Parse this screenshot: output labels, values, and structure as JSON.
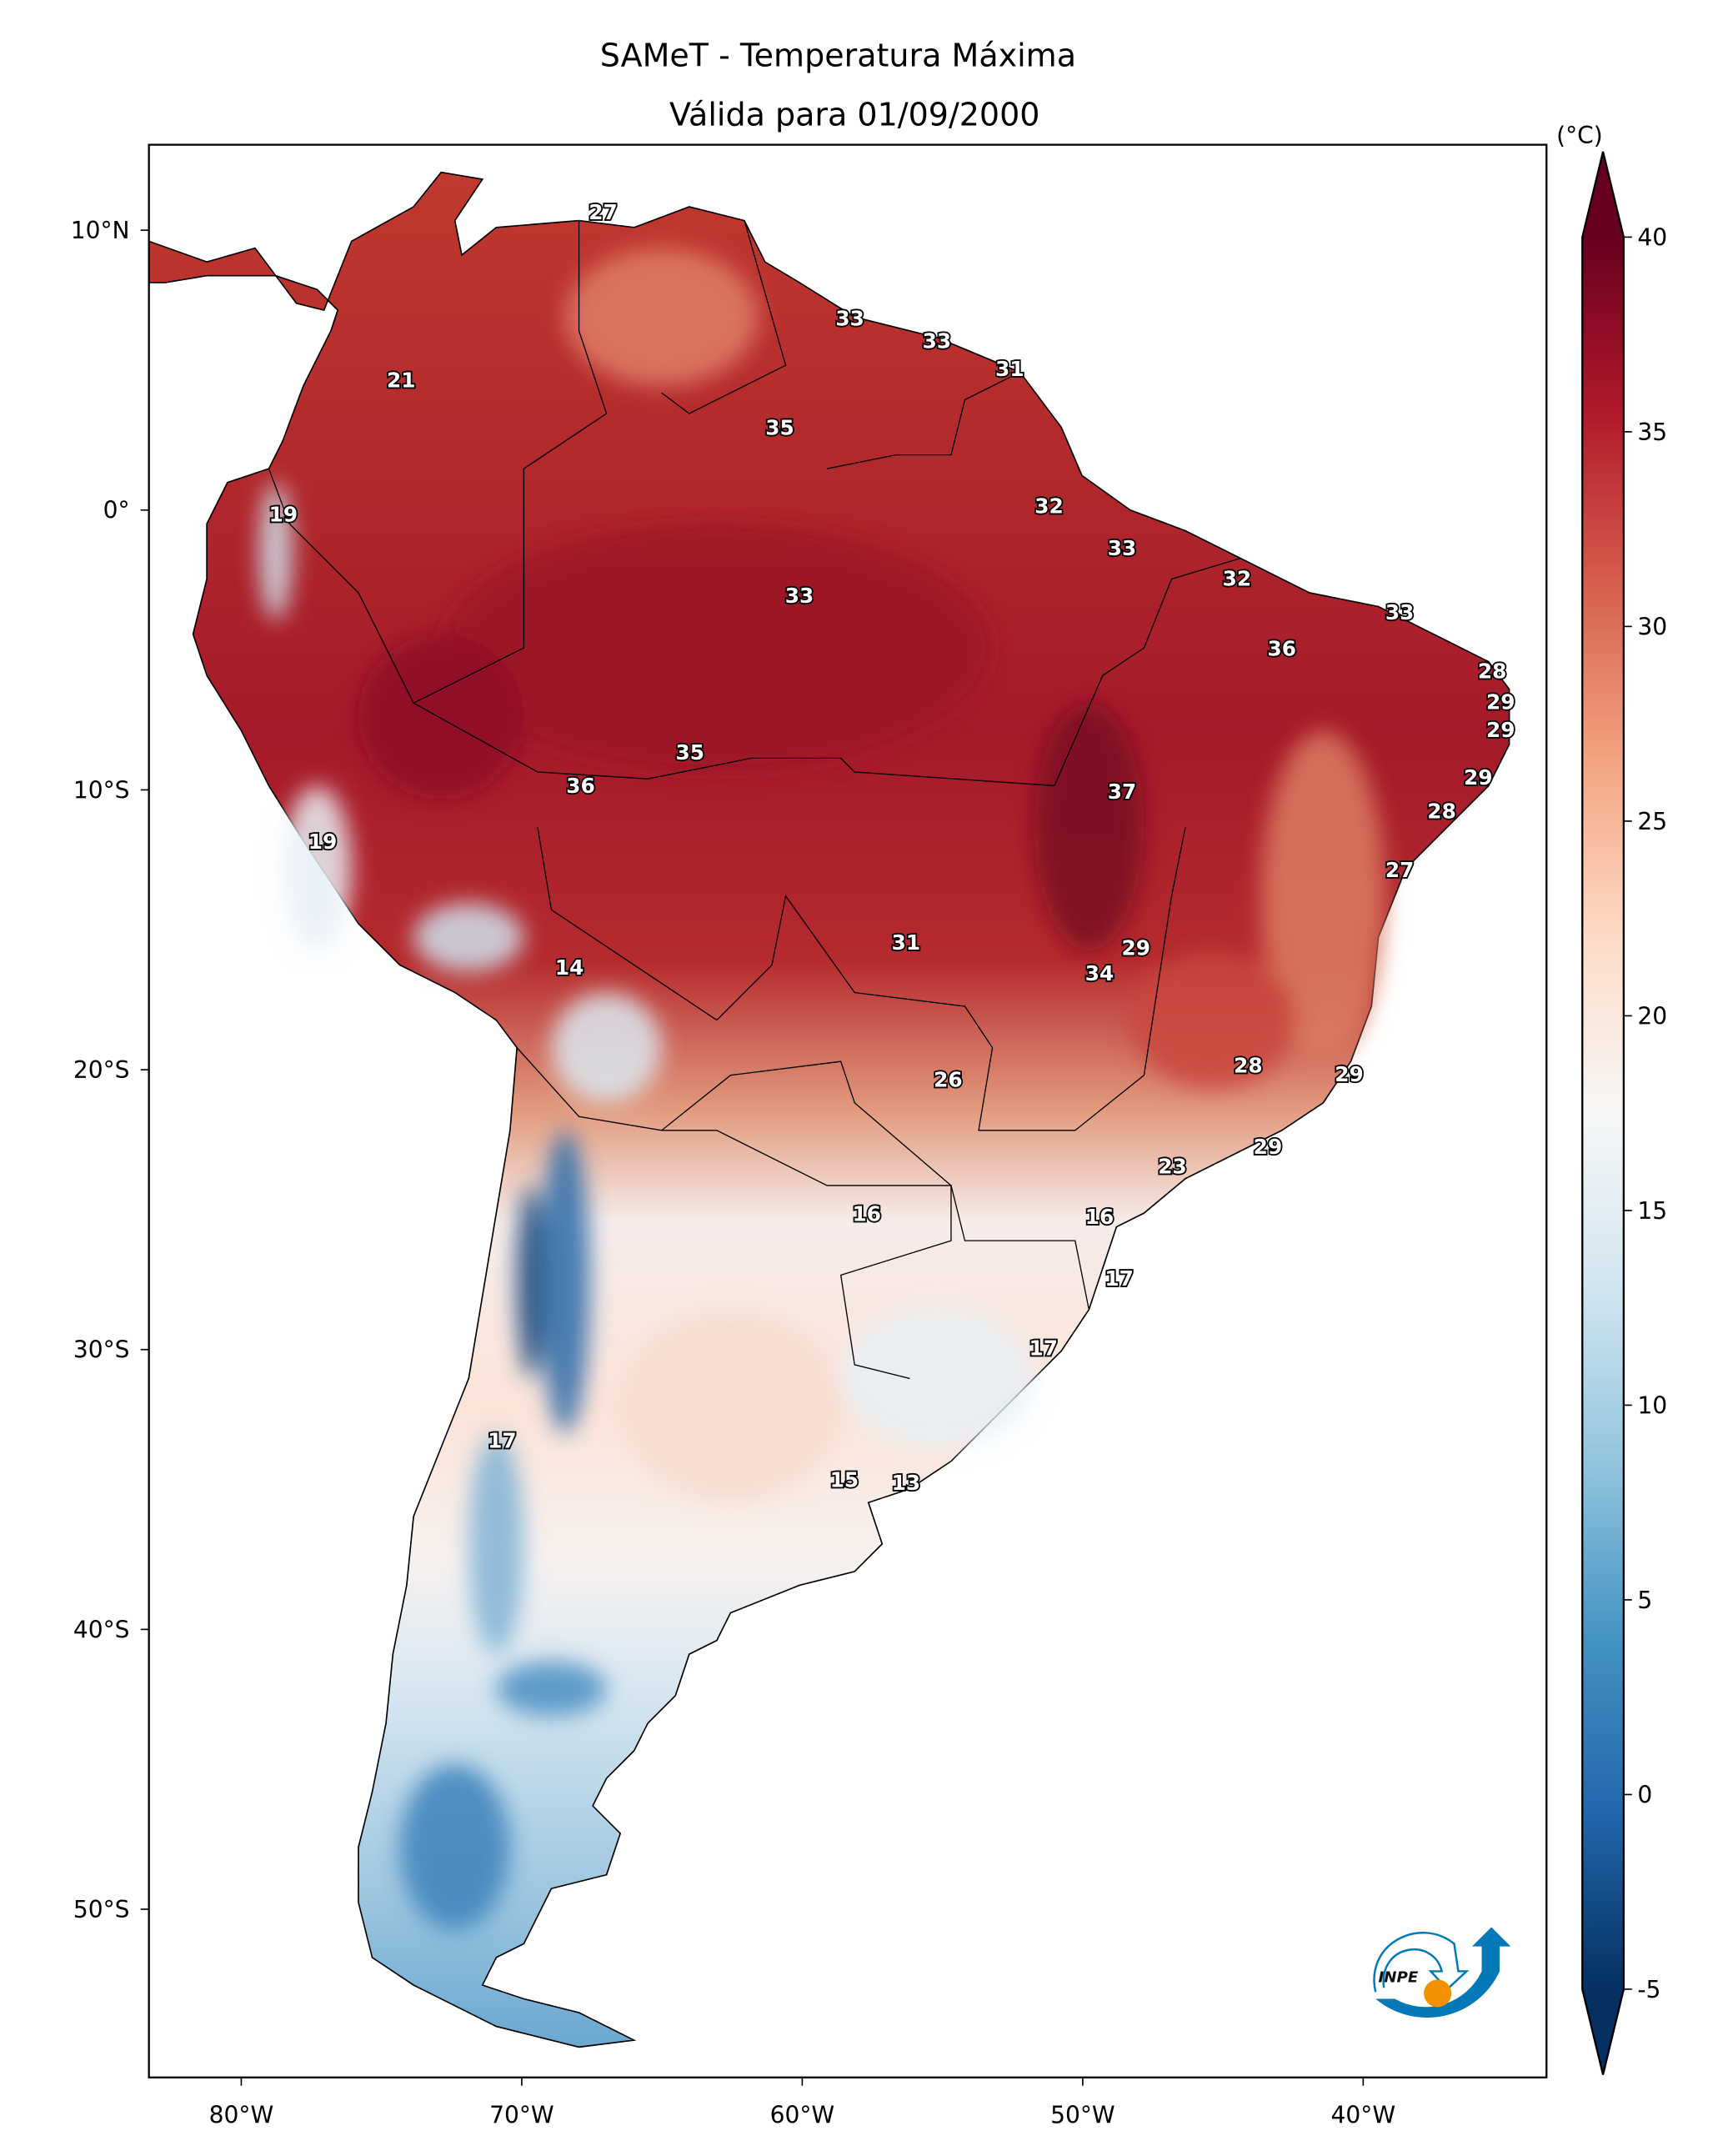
{
  "title": {
    "line1": "SAMeT - Temperatura Máxima",
    "line2": "Válida para 01/09/2000"
  },
  "colorbar": {
    "unit_label": "(°C)",
    "min": -5,
    "max": 40,
    "extend": "both",
    "ticks": [
      -5,
      0,
      5,
      10,
      15,
      20,
      25,
      30,
      35,
      40
    ],
    "colormap": "RdBu_r",
    "stops": [
      "#053061",
      "#2166ac",
      "#4393c3",
      "#92c5de",
      "#d1e5f0",
      "#f7f7f7",
      "#fddbc7",
      "#f4a582",
      "#d6604d",
      "#b2182b",
      "#67001f"
    ]
  },
  "axes": {
    "lon_ticks": [
      {
        "value": -80,
        "label": "80°W"
      },
      {
        "value": -70,
        "label": "70°W"
      },
      {
        "value": -60,
        "label": "60°W"
      },
      {
        "value": -50,
        "label": "50°W"
      },
      {
        "value": -40,
        "label": "40°W"
      }
    ],
    "lat_ticks": [
      {
        "value": 10,
        "label": "10°N"
      },
      {
        "value": 0,
        "label": "0°"
      },
      {
        "value": -10,
        "label": "10°S"
      },
      {
        "value": -20,
        "label": "20°S"
      },
      {
        "value": -30,
        "label": "30°S"
      },
      {
        "value": -40,
        "label": "40°S"
      },
      {
        "value": -50,
        "label": "50°S"
      }
    ],
    "lon_range": [
      -83.3,
      -33.5
    ],
    "lat_range": [
      -56,
      13
    ]
  },
  "contour_labels": [
    {
      "v": "27",
      "lon": -67.1,
      "lat": 10.6
    },
    {
      "v": "33",
      "lon": -58.3,
      "lat": 6.8
    },
    {
      "v": "33",
      "lon": -55.2,
      "lat": 6.0
    },
    {
      "v": "31",
      "lon": -52.6,
      "lat": 5.0
    },
    {
      "v": "21",
      "lon": -74.3,
      "lat": 4.6
    },
    {
      "v": "35",
      "lon": -60.8,
      "lat": 2.9
    },
    {
      "v": "19",
      "lon": -78.5,
      "lat": -0.2
    },
    {
      "v": "32",
      "lon": -51.2,
      "lat": 0.1
    },
    {
      "v": "33",
      "lon": -48.6,
      "lat": -1.4
    },
    {
      "v": "32",
      "lon": -44.5,
      "lat": -2.5
    },
    {
      "v": "33",
      "lon": -60.1,
      "lat": -3.1
    },
    {
      "v": "33",
      "lon": -38.7,
      "lat": -3.7
    },
    {
      "v": "36",
      "lon": -42.9,
      "lat": -5.0
    },
    {
      "v": "28",
      "lon": -35.4,
      "lat": -5.8
    },
    {
      "v": "29",
      "lon": -35.1,
      "lat": -6.9
    },
    {
      "v": "29",
      "lon": -35.1,
      "lat": -7.9
    },
    {
      "v": "35",
      "lon": -64.0,
      "lat": -8.7
    },
    {
      "v": "29",
      "lon": -35.9,
      "lat": -9.6
    },
    {
      "v": "36",
      "lon": -67.9,
      "lat": -9.9
    },
    {
      "v": "37",
      "lon": -48.6,
      "lat": -10.1
    },
    {
      "v": "28",
      "lon": -37.2,
      "lat": -10.8
    },
    {
      "v": "19",
      "lon": -77.1,
      "lat": -11.9
    },
    {
      "v": "27",
      "lon": -38.7,
      "lat": -12.9
    },
    {
      "v": "31",
      "lon": -56.3,
      "lat": -15.5
    },
    {
      "v": "29",
      "lon": -48.1,
      "lat": -15.7
    },
    {
      "v": "14",
      "lon": -68.3,
      "lat": -16.4
    },
    {
      "v": "34",
      "lon": -49.4,
      "lat": -16.6
    },
    {
      "v": "28",
      "lon": -44.1,
      "lat": -19.9
    },
    {
      "v": "29",
      "lon": -40.5,
      "lat": -20.2
    },
    {
      "v": "26",
      "lon": -54.8,
      "lat": -20.4
    },
    {
      "v": "23",
      "lon": -46.8,
      "lat": -23.5
    },
    {
      "v": "29",
      "lon": -43.4,
      "lat": -22.8
    },
    {
      "v": "16",
      "lon": -57.7,
      "lat": -25.2
    },
    {
      "v": "16",
      "lon": -49.4,
      "lat": -25.3
    },
    {
      "v": "17",
      "lon": -48.7,
      "lat": -27.5
    },
    {
      "v": "17",
      "lon": -51.4,
      "lat": -30.0
    },
    {
      "v": "17",
      "lon": -70.7,
      "lat": -33.3
    },
    {
      "v": "15",
      "lon": -58.5,
      "lat": -34.7
    },
    {
      "v": "13",
      "lon": -56.3,
      "lat": -34.8
    }
  ],
  "logo": {
    "text": "INPE",
    "colors": {
      "blue": "#0378b9",
      "orange": "#f39200"
    }
  }
}
